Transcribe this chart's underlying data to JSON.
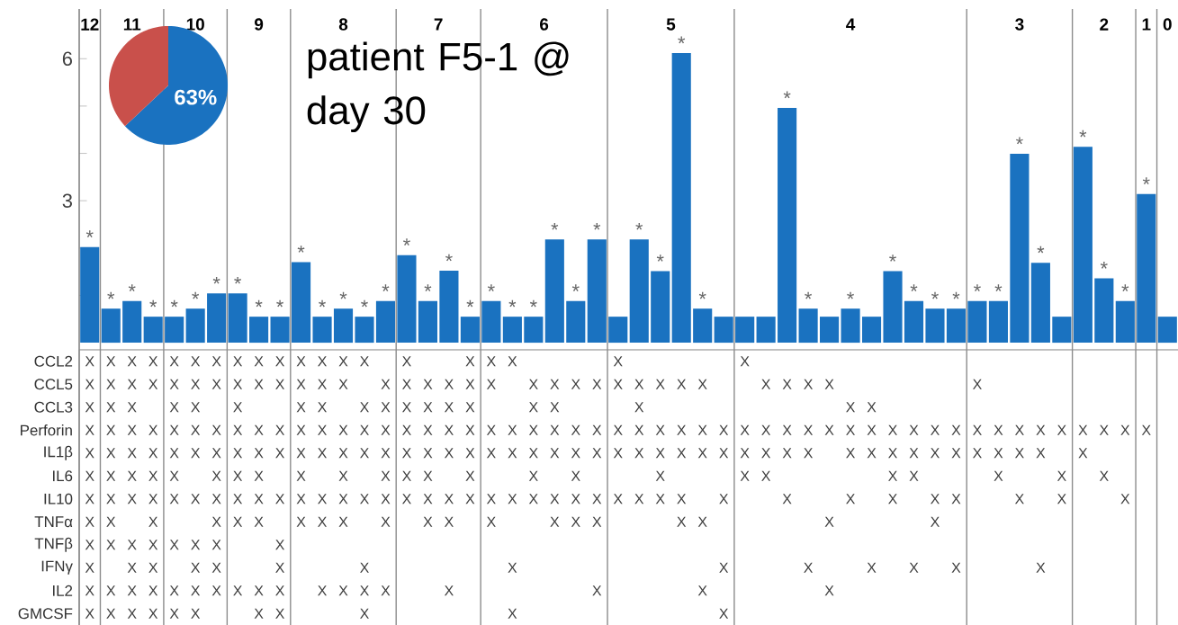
{
  "chart_data": [
    {
      "type": "bar",
      "categories": [
        null,
        null,
        null,
        null,
        null,
        null,
        null,
        null,
        null,
        null,
        null,
        null,
        null,
        null,
        null,
        null,
        null,
        null,
        null,
        null,
        null,
        null,
        null,
        null,
        null,
        null,
        null,
        null,
        null,
        null,
        null,
        null,
        null,
        null,
        null,
        null,
        null,
        null,
        null,
        null,
        null,
        null,
        null,
        null,
        null,
        null,
        null,
        null,
        null,
        null,
        null,
        null
      ],
      "values": [
        2.02,
        0.72,
        0.88,
        0.55,
        0.55,
        0.72,
        1.04,
        1.04,
        0.55,
        0.55,
        1.7,
        0.55,
        0.72,
        0.55,
        0.88,
        1.85,
        0.88,
        1.52,
        0.55,
        0.88,
        0.55,
        0.55,
        2.18,
        0.88,
        2.18,
        0.55,
        2.18,
        1.51,
        6.12,
        0.72,
        0.55,
        0.55,
        0.55,
        4.96,
        0.72,
        0.55,
        0.72,
        0.55,
        1.51,
        0.88,
        0.72,
        0.72,
        0.88,
        0.88,
        3.99,
        1.69,
        0.55,
        4.14,
        1.36,
        0.88,
        3.14,
        0.55
      ],
      "value_labels": [
        "*",
        "*",
        "*",
        "*",
        "*",
        "*",
        "*",
        "*",
        "*",
        "*",
        "*",
        "*",
        "*",
        "*",
        "*",
        "*",
        "*",
        "*",
        "*",
        "*",
        "*",
        "*",
        "*",
        "*",
        "*",
        null,
        "*",
        "*",
        "*",
        "*",
        null,
        null,
        null,
        "*",
        "*",
        null,
        "*",
        null,
        "*",
        "*",
        "*",
        "*",
        "*",
        "*",
        "*",
        "*",
        null,
        "*",
        "*",
        "*",
        "*",
        null
      ],
      "color": "#1a72c0",
      "ylim": [
        -0.15,
        7.05
      ],
      "yticks": [
        {
          "value": 1,
          "label": null
        },
        {
          "value": 2,
          "label": null
        },
        3,
        {
          "value": 4,
          "label": null
        },
        {
          "value": 5,
          "label": null
        },
        6
      ],
      "annotations": [
        "12",
        "11",
        "10",
        "9",
        "8",
        "7",
        "6",
        "5",
        "4",
        "3",
        "2",
        "1",
        "0",
        "patient F5-1 @ day 30"
      ]
    },
    {
      "type": "heatmap",
      "categories": [
        null,
        null,
        null,
        null,
        null,
        null,
        null,
        null,
        null,
        null,
        null,
        null,
        null,
        null,
        null,
        null,
        null,
        null,
        null,
        null,
        null,
        null,
        null,
        null,
        null,
        null,
        null,
        null,
        null,
        null,
        null,
        null,
        null,
        null,
        null,
        null,
        null,
        null,
        null,
        null,
        null,
        null,
        null,
        null,
        null,
        null,
        null,
        null,
        null,
        null,
        null,
        null
      ],
      "y_categories": [
        "CCL2",
        "CCL5",
        "CCL3",
        "Perforin",
        "IL1β",
        "IL6",
        "IL10",
        "TNFα",
        "TNFβ",
        "IFNγ",
        "IL2",
        "GMCSF"
      ],
      "cell_labels": [
        [
          "X",
          "X",
          "X",
          "X",
          "X",
          "X",
          "X",
          "X",
          "X",
          "X",
          "X",
          "X",
          "X",
          "X",
          null,
          "X",
          null,
          null,
          "X",
          "X",
          "X",
          null,
          null,
          null,
          null,
          "X",
          null,
          null,
          null,
          null,
          null,
          "X",
          null,
          null,
          null,
          null,
          null,
          null,
          null,
          null,
          null,
          null,
          null,
          null,
          null,
          null,
          null,
          null,
          null,
          null,
          null,
          null
        ],
        [
          "X",
          "X",
          "X",
          "X",
          "X",
          "X",
          "X",
          "X",
          "X",
          "X",
          "X",
          "X",
          "X",
          null,
          "X",
          "X",
          "X",
          "X",
          "X",
          "X",
          null,
          "X",
          "X",
          "X",
          "X",
          "X",
          "X",
          "X",
          "X",
          "X",
          null,
          null,
          "X",
          "X",
          "X",
          "X",
          null,
          null,
          null,
          null,
          null,
          null,
          "X",
          null,
          null,
          null,
          null,
          null,
          null,
          null,
          null,
          null
        ],
        [
          "X",
          "X",
          "X",
          null,
          "X",
          "X",
          null,
          "X",
          null,
          null,
          "X",
          "X",
          null,
          "X",
          "X",
          "X",
          "X",
          "X",
          "X",
          null,
          null,
          "X",
          "X",
          null,
          null,
          null,
          "X",
          null,
          null,
          null,
          null,
          null,
          null,
          null,
          null,
          null,
          "X",
          "X",
          null,
          null,
          null,
          null,
          null,
          null,
          null,
          null,
          null,
          null,
          null,
          null,
          null,
          null
        ],
        [
          "X",
          "X",
          "X",
          "X",
          "X",
          "X",
          "X",
          "X",
          "X",
          "X",
          "X",
          "X",
          "X",
          "X",
          "X",
          "X",
          "X",
          "X",
          "X",
          "X",
          "X",
          "X",
          "X",
          "X",
          "X",
          "X",
          "X",
          "X",
          "X",
          "X",
          "X",
          "X",
          "X",
          "X",
          "X",
          "X",
          "X",
          "X",
          "X",
          "X",
          "X",
          "X",
          "X",
          "X",
          "X",
          "X",
          "X",
          "X",
          "X",
          "X",
          "X",
          null
        ],
        [
          "X",
          "X",
          "X",
          "X",
          "X",
          "X",
          "X",
          "X",
          "X",
          "X",
          "X",
          "X",
          "X",
          "X",
          "X",
          "X",
          "X",
          "X",
          "X",
          "X",
          "X",
          "X",
          "X",
          "X",
          "X",
          "X",
          "X",
          "X",
          "X",
          "X",
          "X",
          "X",
          "X",
          "X",
          "X",
          null,
          "X",
          "X",
          "X",
          "X",
          "X",
          "X",
          "X",
          "X",
          "X",
          "X",
          null,
          "X",
          null,
          null,
          null,
          null
        ],
        [
          "X",
          "X",
          "X",
          "X",
          "X",
          null,
          "X",
          "X",
          "X",
          null,
          "X",
          null,
          "X",
          null,
          "X",
          "X",
          "X",
          null,
          "X",
          null,
          null,
          "X",
          null,
          "X",
          null,
          null,
          null,
          "X",
          null,
          null,
          null,
          "X",
          "X",
          null,
          null,
          null,
          null,
          null,
          "X",
          "X",
          null,
          null,
          null,
          "X",
          null,
          null,
          "X",
          null,
          "X",
          null,
          null,
          null
        ],
        [
          "X",
          "X",
          "X",
          "X",
          "X",
          "X",
          "X",
          "X",
          "X",
          "X",
          "X",
          "X",
          "X",
          "X",
          "X",
          "X",
          "X",
          "X",
          "X",
          "X",
          "X",
          "X",
          "X",
          "X",
          "X",
          "X",
          "X",
          "X",
          "X",
          null,
          "X",
          null,
          null,
          "X",
          null,
          null,
          "X",
          null,
          "X",
          null,
          "X",
          "X",
          null,
          null,
          "X",
          null,
          "X",
          null,
          null,
          "X",
          null,
          null
        ],
        [
          "X",
          "X",
          null,
          "X",
          null,
          null,
          "X",
          "X",
          "X",
          null,
          "X",
          "X",
          "X",
          null,
          "X",
          null,
          "X",
          "X",
          null,
          "X",
          null,
          null,
          "X",
          "X",
          "X",
          null,
          null,
          null,
          "X",
          "X",
          null,
          null,
          null,
          null,
          null,
          "X",
          null,
          null,
          null,
          null,
          "X",
          null,
          null,
          null,
          null,
          null,
          null,
          null,
          null,
          null,
          null,
          null
        ],
        [
          "X",
          "X",
          "X",
          "X",
          "X",
          "X",
          "X",
          null,
          null,
          "X",
          null,
          null,
          null,
          null,
          null,
          null,
          null,
          null,
          null,
          null,
          null,
          null,
          null,
          null,
          null,
          null,
          null,
          null,
          null,
          null,
          null,
          null,
          null,
          null,
          null,
          null,
          null,
          null,
          null,
          null,
          null,
          null,
          null,
          null,
          null,
          null,
          null,
          null,
          null,
          null,
          null,
          null
        ],
        [
          "X",
          null,
          "X",
          "X",
          null,
          "X",
          "X",
          null,
          null,
          "X",
          null,
          null,
          null,
          "X",
          null,
          null,
          null,
          null,
          null,
          null,
          "X",
          null,
          null,
          null,
          null,
          null,
          null,
          null,
          null,
          null,
          "X",
          null,
          null,
          null,
          "X",
          null,
          null,
          "X",
          null,
          "X",
          null,
          "X",
          null,
          null,
          null,
          "X",
          null,
          null,
          null,
          null,
          null,
          null
        ],
        [
          "X",
          "X",
          "X",
          "X",
          "X",
          "X",
          "X",
          "X",
          "X",
          "X",
          null,
          "X",
          "X",
          "X",
          "X",
          null,
          null,
          "X",
          null,
          null,
          null,
          null,
          null,
          null,
          "X",
          null,
          null,
          null,
          null,
          "X",
          null,
          null,
          null,
          null,
          null,
          "X",
          null,
          null,
          null,
          null,
          null,
          null,
          null,
          null,
          null,
          null,
          null,
          null,
          null,
          null,
          null,
          null
        ],
        [
          "X",
          "X",
          "X",
          "X",
          "X",
          "X",
          null,
          null,
          "X",
          "X",
          null,
          null,
          null,
          "X",
          null,
          null,
          null,
          null,
          null,
          null,
          "X",
          null,
          null,
          null,
          null,
          null,
          null,
          null,
          null,
          null,
          "X",
          null,
          null,
          null,
          null,
          null,
          null,
          null,
          null,
          null,
          null,
          null,
          null,
          null,
          null,
          null,
          null,
          null,
          null,
          null,
          null,
          null
        ]
      ],
      "cells": [
        [
          null,
          null,
          null,
          null,
          null,
          null,
          null,
          null,
          null,
          null,
          null,
          null,
          null,
          null,
          null,
          null,
          null,
          null,
          null,
          null,
          null,
          null,
          null,
          null,
          null,
          null,
          null,
          null,
          null,
          null,
          null,
          null,
          null,
          null,
          null,
          null,
          null,
          null,
          null,
          null,
          null,
          null,
          null,
          null,
          null,
          null,
          null,
          null,
          null,
          null,
          null,
          null
        ],
        [
          null,
          null,
          null,
          null,
          null,
          null,
          null,
          null,
          null,
          null,
          null,
          null,
          null,
          null,
          null,
          null,
          null,
          null,
          null,
          null,
          null,
          null,
          null,
          null,
          null,
          null,
          null,
          null,
          null,
          null,
          null,
          null,
          null,
          null,
          null,
          null,
          null,
          null,
          null,
          null,
          null,
          null,
          null,
          null,
          null,
          null,
          null,
          null,
          null,
          null,
          null,
          null
        ],
        [
          null,
          null,
          null,
          null,
          null,
          null,
          null,
          null,
          null,
          null,
          null,
          null,
          null,
          null,
          null,
          null,
          null,
          null,
          null,
          null,
          null,
          null,
          null,
          null,
          null,
          null,
          null,
          null,
          null,
          null,
          null,
          null,
          null,
          null,
          null,
          null,
          null,
          null,
          null,
          null,
          null,
          null,
          null,
          null,
          null,
          null,
          null,
          null,
          null,
          null,
          null,
          null
        ],
        [
          null,
          null,
          null,
          null,
          null,
          null,
          null,
          null,
          null,
          null,
          null,
          null,
          null,
          null,
          null,
          null,
          null,
          null,
          null,
          null,
          null,
          null,
          null,
          null,
          null,
          null,
          null,
          null,
          null,
          null,
          null,
          null,
          null,
          null,
          null,
          null,
          null,
          null,
          null,
          null,
          null,
          null,
          null,
          null,
          null,
          null,
          null,
          null,
          null,
          null,
          null,
          null
        ],
        [
          null,
          null,
          null,
          null,
          null,
          null,
          null,
          null,
          null,
          null,
          null,
          null,
          null,
          null,
          null,
          null,
          null,
          null,
          null,
          null,
          null,
          null,
          null,
          null,
          null,
          null,
          null,
          null,
          null,
          null,
          null,
          null,
          null,
          null,
          null,
          null,
          null,
          null,
          null,
          null,
          null,
          null,
          null,
          null,
          null,
          null,
          null,
          null,
          null,
          null,
          null,
          null
        ],
        [
          null,
          null,
          null,
          null,
          null,
          null,
          null,
          null,
          null,
          null,
          null,
          null,
          null,
          null,
          null,
          null,
          null,
          null,
          null,
          null,
          null,
          null,
          null,
          null,
          null,
          null,
          null,
          null,
          null,
          null,
          null,
          null,
          null,
          null,
          null,
          null,
          null,
          null,
          null,
          null,
          null,
          null,
          null,
          null,
          null,
          null,
          null,
          null,
          null,
          null,
          null,
          null
        ],
        [
          null,
          null,
          null,
          null,
          null,
          null,
          null,
          null,
          null,
          null,
          null,
          null,
          null,
          null,
          null,
          null,
          null,
          null,
          null,
          null,
          null,
          null,
          null,
          null,
          null,
          null,
          null,
          null,
          null,
          null,
          null,
          null,
          null,
          null,
          null,
          null,
          null,
          null,
          null,
          null,
          null,
          null,
          null,
          null,
          null,
          null,
          null,
          null,
          null,
          null,
          null,
          null
        ],
        [
          null,
          null,
          null,
          null,
          null,
          null,
          null,
          null,
          null,
          null,
          null,
          null,
          null,
          null,
          null,
          null,
          null,
          null,
          null,
          null,
          null,
          null,
          null,
          null,
          null,
          null,
          null,
          null,
          null,
          null,
          null,
          null,
          null,
          null,
          null,
          null,
          null,
          null,
          null,
          null,
          null,
          null,
          null,
          null,
          null,
          null,
          null,
          null,
          null,
          null,
          null,
          null
        ],
        [
          null,
          null,
          null,
          null,
          null,
          null,
          null,
          null,
          null,
          null,
          null,
          null,
          null,
          null,
          null,
          null,
          null,
          null,
          null,
          null,
          null,
          null,
          null,
          null,
          null,
          null,
          null,
          null,
          null,
          null,
          null,
          null,
          null,
          null,
          null,
          null,
          null,
          null,
          null,
          null,
          null,
          null,
          null,
          null,
          null,
          null,
          null,
          null,
          null,
          null,
          null,
          null
        ],
        [
          null,
          null,
          null,
          null,
          null,
          null,
          null,
          null,
          null,
          null,
          null,
          null,
          null,
          null,
          null,
          null,
          null,
          null,
          null,
          null,
          null,
          null,
          null,
          null,
          null,
          null,
          null,
          null,
          null,
          null,
          null,
          null,
          null,
          null,
          null,
          null,
          null,
          null,
          null,
          null,
          null,
          null,
          null,
          null,
          null,
          null,
          null,
          null,
          null,
          null,
          null,
          null
        ],
        [
          null,
          null,
          null,
          null,
          null,
          null,
          null,
          null,
          null,
          null,
          null,
          null,
          null,
          null,
          null,
          null,
          null,
          null,
          null,
          null,
          null,
          null,
          null,
          null,
          null,
          null,
          null,
          null,
          null,
          null,
          null,
          null,
          null,
          null,
          null,
          null,
          null,
          null,
          null,
          null,
          null,
          null,
          null,
          null,
          null,
          null,
          null,
          null,
          null,
          null,
          null,
          null
        ],
        [
          null,
          null,
          null,
          null,
          null,
          null,
          null,
          null,
          null,
          null,
          null,
          null,
          null,
          null,
          null,
          null,
          null,
          null,
          null,
          null,
          null,
          null,
          null,
          null,
          null,
          null,
          null,
          null,
          null,
          null,
          null,
          null,
          null,
          null,
          null,
          null,
          null,
          null,
          null,
          null,
          null,
          null,
          null,
          null,
          null,
          null,
          null,
          null,
          null,
          null,
          null,
          null
        ]
      ]
    },
    {
      "type": "pie",
      "categories": [
        null,
        null
      ],
      "values": [
        63,
        37
      ],
      "colors": [
        "#1a72c0",
        "#c9504b"
      ],
      "value_labels": [
        "63%",
        null
      ]
    }
  ]
}
